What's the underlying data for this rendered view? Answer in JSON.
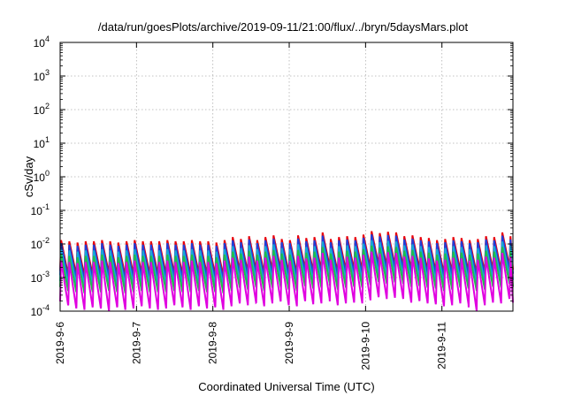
{
  "chart_data": {
    "type": "line",
    "title": "/data/run/goesPlots/archive/2019-09-11/21:00/flux/../bryn/5daysMars.plot",
    "xlabel": "Coordinated Universal Time (UTC)",
    "ylabel": "cSv/day",
    "yscale": "log",
    "ylim": [
      0.0001,
      10000
    ],
    "xlim": [
      0,
      5.93
    ],
    "grid": true,
    "legend": "none",
    "y_ticks": [
      {
        "value": 0.0001,
        "base": "10",
        "exp": "-4"
      },
      {
        "value": 0.001,
        "base": "10",
        "exp": "-3"
      },
      {
        "value": 0.01,
        "base": "10",
        "exp": "-2"
      },
      {
        "value": 0.1,
        "base": "10",
        "exp": "-1"
      },
      {
        "value": 1,
        "base": "10",
        "exp": "0"
      },
      {
        "value": 10,
        "base": "10",
        "exp": "1"
      },
      {
        "value": 100,
        "base": "10",
        "exp": "2"
      },
      {
        "value": 1000,
        "base": "10",
        "exp": "3"
      },
      {
        "value": 10000,
        "base": "10",
        "exp": "4"
      }
    ],
    "x_ticks": [
      {
        "value": 0,
        "label": "2019-9-6"
      },
      {
        "value": 1,
        "label": "2019-9-7"
      },
      {
        "value": 2,
        "label": "2019-9-8"
      },
      {
        "value": 3,
        "label": "2019-9-9"
      },
      {
        "value": 4,
        "label": "2019-9-10"
      },
      {
        "value": 5,
        "label": "2019-9-11"
      }
    ],
    "sawtooth_period_days": 0.107,
    "series": [
      {
        "color": "#e8000b",
        "peaks": [
          0.013,
          0.012,
          0.011,
          0.012,
          0.012,
          0.013,
          0.012,
          0.011,
          0.012,
          0.013,
          0.012,
          0.012,
          0.012,
          0.013,
          0.012,
          0.012,
          0.013,
          0.012,
          0.012,
          0.011,
          0.013,
          0.016,
          0.014,
          0.017,
          0.013,
          0.016,
          0.018,
          0.014,
          0.013,
          0.018,
          0.015,
          0.016,
          0.022,
          0.014,
          0.016,
          0.017,
          0.016,
          0.019,
          0.024,
          0.021,
          0.023,
          0.022,
          0.017,
          0.018,
          0.016,
          0.015,
          0.013,
          0.014,
          0.016,
          0.015,
          0.013,
          0.014,
          0.017,
          0.016,
          0.022,
          0.017,
          0.016
        ],
        "troughs": [
          0.0012,
          0.0012,
          0.0011,
          0.0012,
          0.0012,
          0.0013,
          0.0012,
          0.0011,
          0.0012,
          0.0013,
          0.0012,
          0.0012,
          0.0012,
          0.0013,
          0.0012,
          0.0012,
          0.0013,
          0.0012,
          0.0012,
          0.0011,
          0.0013,
          0.0016,
          0.0014,
          0.0017,
          0.0013,
          0.0016,
          0.0018,
          0.0014,
          0.0013,
          0.0018,
          0.0015,
          0.0016,
          0.0022,
          0.0014,
          0.0016,
          0.0017,
          0.0016,
          0.0019,
          0.0024,
          0.0021,
          0.0023,
          0.0022,
          0.0017,
          0.0018,
          0.0016,
          0.0015,
          0.0013,
          0.0014,
          0.0016,
          0.0015,
          0.0013,
          0.0014,
          0.0017,
          0.0016,
          0.0022,
          0.0017,
          0.0016
        ]
      },
      {
        "color": "#1f3fd9",
        "peaks": [
          0.0105,
          0.0095,
          0.0088,
          0.0095,
          0.0095,
          0.0105,
          0.0095,
          0.0088,
          0.0095,
          0.0105,
          0.0095,
          0.0095,
          0.0095,
          0.0105,
          0.0095,
          0.0095,
          0.0105,
          0.0095,
          0.0095,
          0.0088,
          0.0105,
          0.0128,
          0.0112,
          0.0136,
          0.0105,
          0.0128,
          0.0144,
          0.0112,
          0.0105,
          0.0144,
          0.012,
          0.0128,
          0.0176,
          0.0112,
          0.0128,
          0.0136,
          0.0128,
          0.0152,
          0.0192,
          0.0168,
          0.0184,
          0.0176,
          0.0136,
          0.0144,
          0.0128,
          0.012,
          0.0105,
          0.0112,
          0.0128,
          0.012,
          0.0105,
          0.0112,
          0.0136,
          0.0128,
          0.0176,
          0.0136,
          0.0128
        ],
        "troughs": [
          0.0009,
          0.0009,
          0.0008,
          0.0009,
          0.0009,
          0.001,
          0.0009,
          0.0008,
          0.0009,
          0.001,
          0.0009,
          0.0009,
          0.0009,
          0.001,
          0.0009,
          0.0009,
          0.001,
          0.0009,
          0.0009,
          0.0008,
          0.001,
          0.0012,
          0.0011,
          0.0013,
          0.001,
          0.0012,
          0.0014,
          0.0011,
          0.001,
          0.0014,
          0.0012,
          0.0012,
          0.0017,
          0.0011,
          0.0012,
          0.0013,
          0.0012,
          0.0015,
          0.0019,
          0.0016,
          0.0018,
          0.0017,
          0.0013,
          0.0014,
          0.0012,
          0.0012,
          0.001,
          0.0011,
          0.0012,
          0.0012,
          0.001,
          0.0011,
          0.0013,
          0.0012,
          0.0017,
          0.0013,
          0.0012
        ]
      },
      {
        "color": "#18a9d6",
        "peaks": [
          0.007,
          0.0064,
          0.0059,
          0.0064,
          0.0064,
          0.007,
          0.0064,
          0.0059,
          0.0064,
          0.007,
          0.0064,
          0.0064,
          0.0064,
          0.007,
          0.0064,
          0.0064,
          0.007,
          0.0064,
          0.0064,
          0.0059,
          0.007,
          0.0086,
          0.0075,
          0.0091,
          0.007,
          0.0086,
          0.0097,
          0.0075,
          0.007,
          0.0097,
          0.0081,
          0.0086,
          0.0118,
          0.0075,
          0.0086,
          0.0091,
          0.0086,
          0.0102,
          0.0129,
          0.0113,
          0.0124,
          0.0118,
          0.0091,
          0.0097,
          0.0086,
          0.0081,
          0.007,
          0.0075,
          0.0086,
          0.0081,
          0.007,
          0.0075,
          0.0091,
          0.0086,
          0.0118,
          0.0091,
          0.0086
        ],
        "troughs": [
          0.0006,
          0.0006,
          0.00055,
          0.0006,
          0.0006,
          0.00065,
          0.0006,
          0.00055,
          0.0006,
          0.00065,
          0.0006,
          0.0006,
          0.0006,
          0.00065,
          0.0006,
          0.0006,
          0.00065,
          0.0006,
          0.0006,
          0.00055,
          0.00065,
          0.0008,
          0.0007,
          0.00085,
          0.00065,
          0.0008,
          0.0009,
          0.0007,
          0.00065,
          0.0009,
          0.00075,
          0.0008,
          0.0011,
          0.0007,
          0.0008,
          0.00085,
          0.0008,
          0.00095,
          0.0012,
          0.00105,
          0.00115,
          0.0011,
          0.00085,
          0.0009,
          0.0008,
          0.00075,
          0.00065,
          0.0007,
          0.0008,
          0.00075,
          0.00065,
          0.0007,
          0.00085,
          0.0008,
          0.0011,
          0.00085,
          0.0008
        ]
      },
      {
        "color": "#1fbf4a",
        "peaks": [
          0.0048,
          0.0044,
          0.004,
          0.0044,
          0.0044,
          0.0048,
          0.0044,
          0.004,
          0.0044,
          0.0048,
          0.0044,
          0.0044,
          0.0044,
          0.0048,
          0.0044,
          0.0044,
          0.0048,
          0.0044,
          0.0044,
          0.004,
          0.0048,
          0.0059,
          0.0052,
          0.0063,
          0.0048,
          0.0059,
          0.0066,
          0.0052,
          0.0048,
          0.0066,
          0.0055,
          0.0059,
          0.0081,
          0.0052,
          0.0059,
          0.0063,
          0.0059,
          0.007,
          0.0089,
          0.0078,
          0.0085,
          0.0081,
          0.0063,
          0.0066,
          0.0059,
          0.0055,
          0.0048,
          0.0052,
          0.0059,
          0.0055,
          0.0048,
          0.0052,
          0.0063,
          0.0059,
          0.0081,
          0.0063,
          0.0059
        ],
        "troughs": [
          0.0004,
          0.00037,
          0.00034,
          0.00037,
          0.00037,
          0.0004,
          0.00037,
          0.00034,
          0.00037,
          0.0004,
          0.00037,
          0.00037,
          0.00037,
          0.0004,
          0.00037,
          0.00037,
          0.0004,
          0.00037,
          0.00037,
          0.00034,
          0.0004,
          0.0005,
          0.00044,
          0.00053,
          0.0004,
          0.0005,
          0.00056,
          0.00044,
          0.0004,
          0.00056,
          0.00047,
          0.0005,
          0.00069,
          0.00044,
          0.0005,
          0.00053,
          0.0005,
          0.0006,
          0.00075,
          0.00066,
          0.00072,
          0.00069,
          0.00053,
          0.00056,
          0.0005,
          0.00047,
          0.0004,
          0.00044,
          0.0005,
          0.00047,
          0.0004,
          0.00044,
          0.00053,
          0.0005,
          0.00069,
          0.00053,
          0.0005
        ]
      },
      {
        "color": "#e000e0",
        "peaks": [
          0.0032,
          0.0029,
          0.0027,
          0.0029,
          0.0029,
          0.0032,
          0.0029,
          0.0027,
          0.0029,
          0.0032,
          0.0029,
          0.0029,
          0.0029,
          0.0032,
          0.0029,
          0.0029,
          0.0032,
          0.0029,
          0.0029,
          0.0027,
          0.0032,
          0.0039,
          0.0034,
          0.0042,
          0.0032,
          0.0039,
          0.0044,
          0.0034,
          0.0032,
          0.0044,
          0.0037,
          0.0039,
          0.0054,
          0.0034,
          0.0039,
          0.0042,
          0.0039,
          0.0047,
          0.0059,
          0.0052,
          0.0057,
          0.0054,
          0.0042,
          0.0044,
          0.0039,
          0.0037,
          0.0032,
          0.0034,
          0.0039,
          0.0037,
          0.0032,
          0.0034,
          0.0042,
          0.0039,
          0.0054,
          0.0042,
          0.0039
        ],
        "troughs": [
          0.00015,
          0.00012,
          0.00011,
          0.00013,
          0.00012,
          0.0001,
          0.00013,
          0.00011,
          0.00012,
          0.00014,
          0.00012,
          0.00011,
          0.00012,
          0.00015,
          0.00013,
          0.00011,
          0.00014,
          0.00012,
          0.00013,
          0.00011,
          0.00014,
          0.00017,
          0.00015,
          0.00018,
          0.00014,
          0.00017,
          0.0002,
          0.00015,
          0.00014,
          0.0002,
          0.00016,
          0.00017,
          0.00024,
          0.00015,
          0.00017,
          0.00018,
          0.00017,
          0.00021,
          0.00026,
          0.00023,
          0.00025,
          0.00024,
          0.00018,
          0.0002,
          0.00017,
          0.00016,
          0.00014,
          0.00015,
          0.00017,
          0.00016,
          0.0001,
          0.00015,
          0.00018,
          0.00017,
          0.00024,
          0.00018,
          0.00012
        ]
      }
    ]
  }
}
